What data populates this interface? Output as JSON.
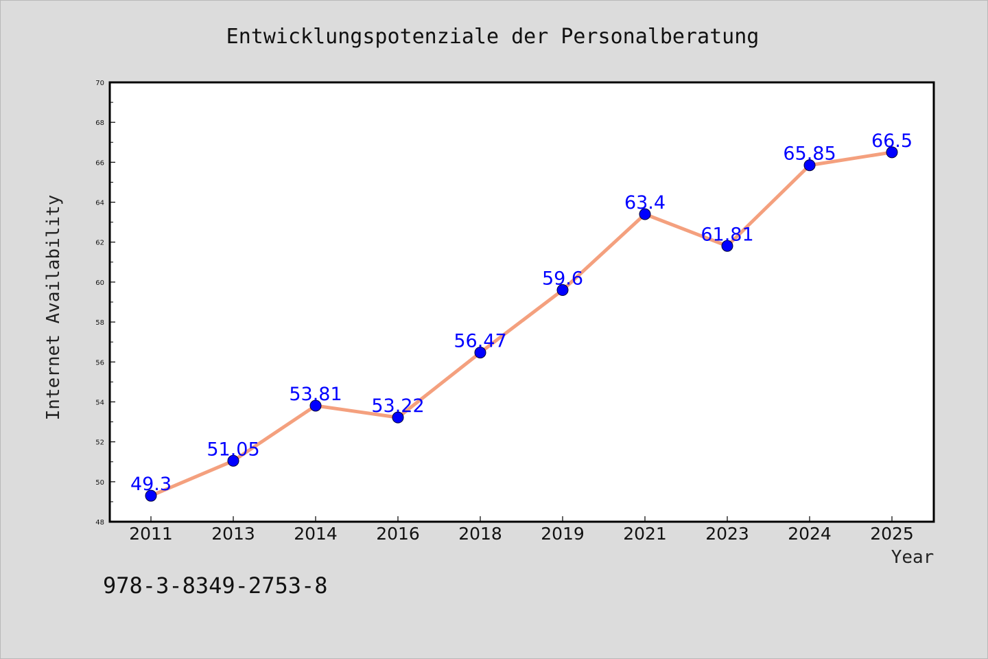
{
  "chart_data": {
    "type": "line",
    "title": "Entwicklungspotenziale der Personalberatung",
    "xlabel": "Year",
    "ylabel": "Internet Availability",
    "categories": [
      "2011",
      "2013",
      "2014",
      "2016",
      "2018",
      "2019",
      "2021",
      "2023",
      "2024",
      "2025"
    ],
    "series": [
      {
        "values": [
          49.3,
          51.05,
          53.81,
          53.22,
          56.47,
          59.6,
          63.4,
          61.81,
          65.85,
          66.5
        ],
        "labels": [
          "49.3",
          "51.05",
          "53.81",
          "53.22",
          "56.47",
          "59.6",
          "63.4",
          "61.81",
          "65.85",
          "66.5"
        ],
        "line_color": "#f4a07e",
        "marker_color": "#0000ff",
        "label_color": "#0000ff"
      }
    ],
    "ylim": [
      48,
      70
    ],
    "yticks": [
      48,
      50,
      52,
      54,
      56,
      58,
      60,
      62,
      64,
      66,
      68,
      70
    ],
    "grid": false,
    "legend": "none"
  },
  "footer": {
    "text": "978-3-8349-2753-8"
  },
  "colors": {
    "background": "#dcdcdc",
    "plot_background": "#ffffff",
    "axis": "#000000"
  }
}
